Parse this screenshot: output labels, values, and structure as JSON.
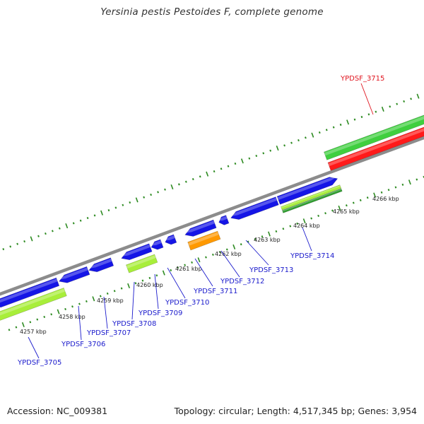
{
  "title": "Yersinia pestis Pestoides F, complete genome",
  "footer": {
    "accession": "Accession: NC_009381",
    "summary": "Topology: circular; Length: 4,517,345 bp; Genes: 3,954"
  },
  "colors": {
    "backbone": "#8c8c8c",
    "cds_forward": "#1515e6",
    "cds_reverse_blue": "#1515e6",
    "cds_green_light": "#a8ee3a",
    "cds_green_dark": "#3fcf3f",
    "rna_red": "#ff1a1a",
    "orange": "#ff9900",
    "tick": "#2e8b22",
    "label_blue": "#1a1acc",
    "label_red": "#e0141e"
  },
  "scale_labels": [
    "4257 kbp",
    "4258 kbp",
    "4259 kbp",
    "4260 kbp",
    "4261 kbp",
    "4262 kbp",
    "4263 kbp",
    "4264 kbp",
    "4265 kbp",
    "4266 kbp"
  ],
  "genes": [
    {
      "name": "YPDSF_3705",
      "color": "label_blue"
    },
    {
      "name": "YPDSF_3706",
      "color": "label_blue"
    },
    {
      "name": "YPDSF_3707",
      "color": "label_blue"
    },
    {
      "name": "YPDSF_3708",
      "color": "label_blue"
    },
    {
      "name": "YPDSF_3709",
      "color": "label_blue"
    },
    {
      "name": "YPDSF_3710",
      "color": "label_blue"
    },
    {
      "name": "YPDSF_3711",
      "color": "label_blue"
    },
    {
      "name": "YPDSF_3712",
      "color": "label_blue"
    },
    {
      "name": "YPDSF_3713",
      "color": "label_blue"
    },
    {
      "name": "YPDSF_3714",
      "color": "label_blue"
    },
    {
      "name": "YPDSF_3715",
      "color": "label_red"
    }
  ]
}
